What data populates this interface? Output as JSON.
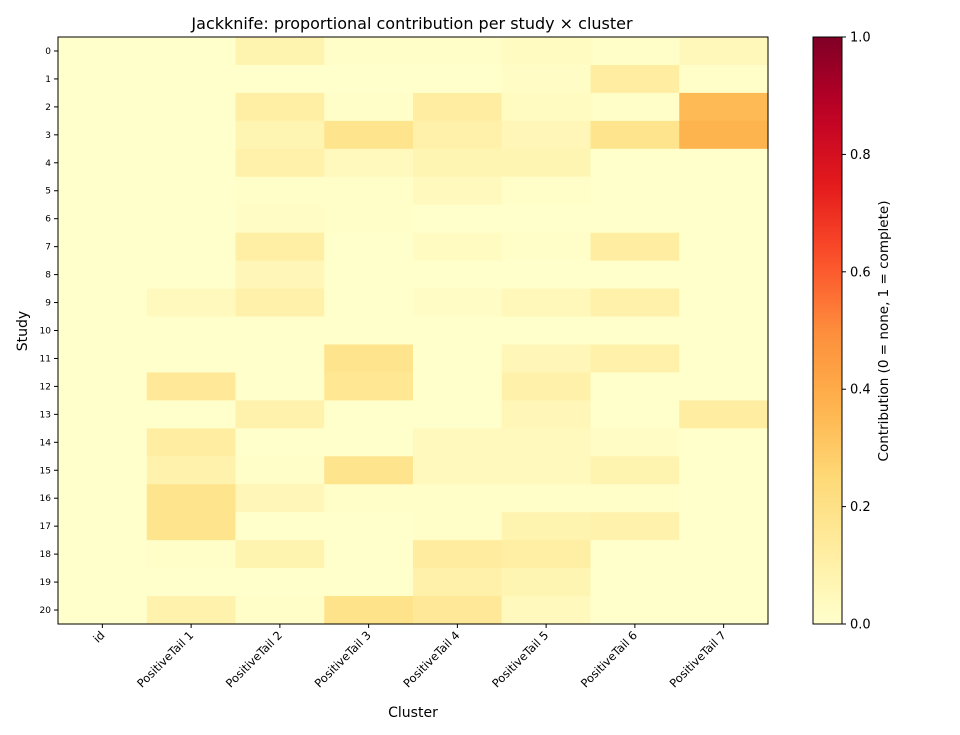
{
  "chart_data": {
    "type": "heatmap",
    "title": "Jackknife: proportional contribution per study × cluster",
    "xlabel": "Cluster",
    "ylabel": "Study",
    "colorbar_label": "Contribution (0 = none, 1 = complete)",
    "colormap": "YlOrRd",
    "vmin": 0.0,
    "vmax": 1.0,
    "colorbar_ticks": [
      "0.0",
      "0.2",
      "0.4",
      "0.6",
      "0.8",
      "1.0"
    ],
    "columns": [
      "id",
      "PositiveTail 1",
      "PositiveTail 2",
      "PositiveTail 3",
      "PositiveTail 4",
      "PositiveTail 5",
      "PositiveTail 6",
      "PositiveTail 7"
    ],
    "rows": [
      "0",
      "1",
      "2",
      "3",
      "4",
      "5",
      "6",
      "7",
      "8",
      "9",
      "10",
      "11",
      "12",
      "13",
      "14",
      "15",
      "16",
      "17",
      "18",
      "19",
      "20"
    ],
    "values": [
      [
        0.0,
        0.0,
        0.08,
        0.01,
        0.01,
        0.03,
        0.01,
        0.05
      ],
      [
        0.0,
        0.0,
        0.0,
        0.0,
        0.0,
        0.02,
        0.12,
        0.01
      ],
      [
        0.0,
        0.0,
        0.11,
        0.01,
        0.12,
        0.03,
        0.01,
        0.35
      ],
      [
        0.0,
        0.0,
        0.07,
        0.18,
        0.1,
        0.06,
        0.18,
        0.37
      ],
      [
        0.0,
        0.0,
        0.1,
        0.04,
        0.07,
        0.07,
        0.0,
        0.0
      ],
      [
        0.0,
        0.0,
        0.01,
        0.01,
        0.04,
        0.01,
        0.0,
        0.0
      ],
      [
        0.0,
        0.0,
        0.02,
        0.01,
        0.0,
        0.0,
        0.0,
        0.0
      ],
      [
        0.0,
        0.0,
        0.11,
        0.0,
        0.03,
        0.01,
        0.12,
        0.0
      ],
      [
        0.0,
        0.0,
        0.06,
        0.0,
        0.0,
        0.0,
        0.0,
        0.0
      ],
      [
        0.0,
        0.04,
        0.1,
        0.0,
        0.02,
        0.05,
        0.1,
        0.0
      ],
      [
        0.0,
        0.0,
        0.0,
        0.0,
        0.0,
        0.0,
        0.0,
        0.0
      ],
      [
        0.0,
        0.0,
        0.0,
        0.18,
        0.0,
        0.06,
        0.1,
        0.0
      ],
      [
        0.0,
        0.15,
        0.0,
        0.16,
        0.0,
        0.1,
        0.0,
        0.0
      ],
      [
        0.0,
        0.0,
        0.09,
        0.0,
        0.0,
        0.06,
        0.0,
        0.12
      ],
      [
        0.0,
        0.12,
        0.0,
        0.0,
        0.04,
        0.04,
        0.02,
        0.0
      ],
      [
        0.0,
        0.09,
        0.01,
        0.18,
        0.04,
        0.04,
        0.08,
        0.0
      ],
      [
        0.0,
        0.18,
        0.06,
        0.01,
        0.01,
        0.01,
        0.01,
        0.0
      ],
      [
        0.0,
        0.18,
        0.0,
        0.0,
        0.01,
        0.08,
        0.09,
        0.0
      ],
      [
        0.0,
        0.01,
        0.08,
        0.0,
        0.13,
        0.11,
        0.0,
        0.0
      ],
      [
        0.0,
        0.0,
        0.0,
        0.0,
        0.1,
        0.07,
        0.0,
        0.0
      ],
      [
        0.0,
        0.09,
        0.01,
        0.19,
        0.15,
        0.04,
        0.0,
        0.0
      ]
    ]
  }
}
